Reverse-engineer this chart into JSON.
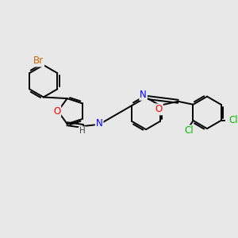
{
  "bg_color": "#e8e8e8",
  "bond_color": "#000000",
  "bond_width": 1.4,
  "atom_colors": {
    "Br": "#cc6600",
    "O": "#ff0000",
    "N": "#0000ff",
    "Cl": "#00bb00",
    "C": "#000000",
    "H": "#444444"
  },
  "font_size": 8.5,
  "fig_width": 3.0,
  "fig_height": 3.0,
  "dpi": 100
}
